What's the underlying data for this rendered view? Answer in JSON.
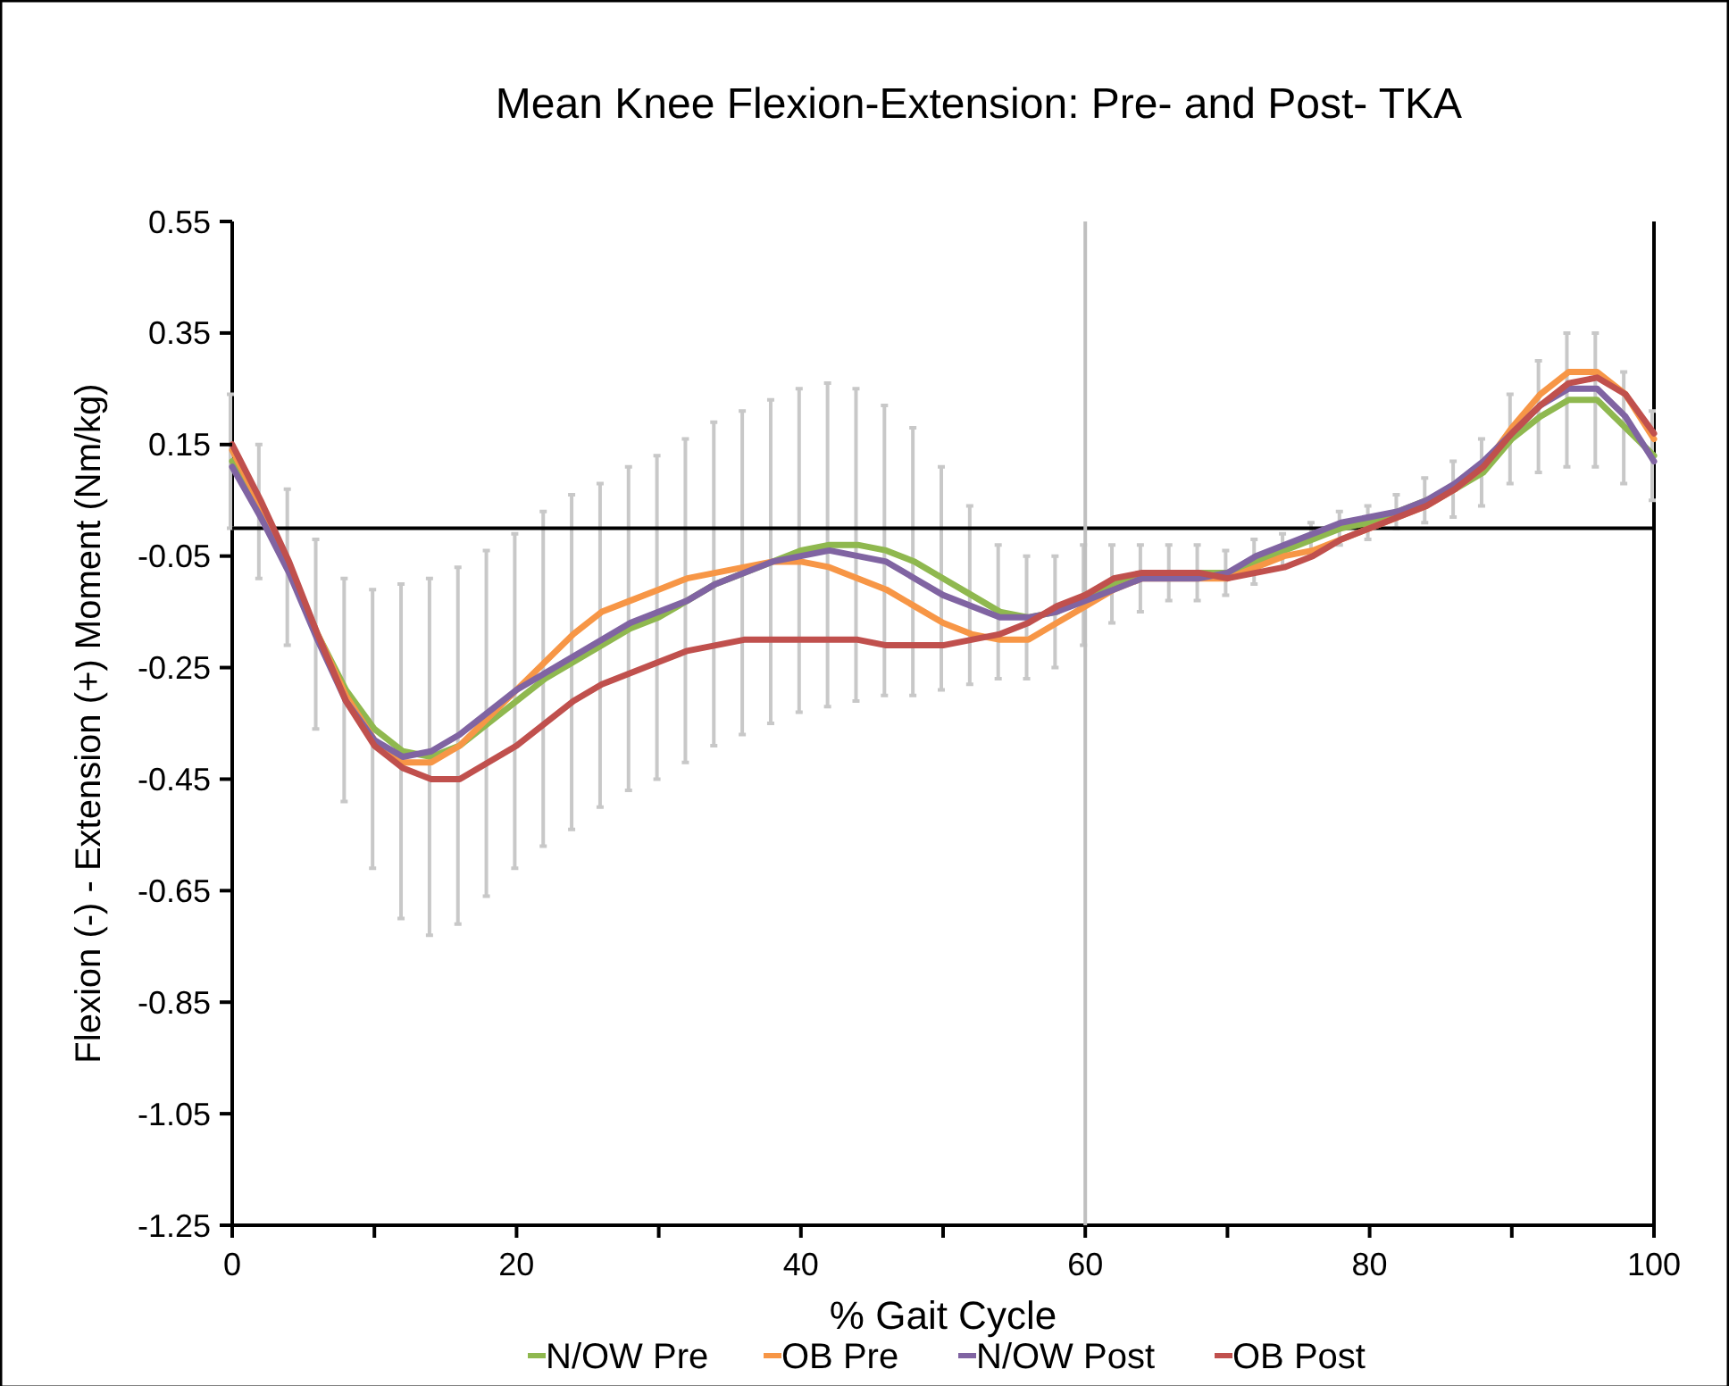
{
  "chart_data": {
    "type": "line",
    "title": "Mean Knee Flexion-Extension: Pre- and Post- TKA",
    "xlabel": "% Gait Cycle",
    "ylabel": "Flexion (-) - Extension (+) Moment (Nm/kg)",
    "x": [
      0,
      2,
      4,
      6,
      8,
      10,
      12,
      14,
      16,
      18,
      20,
      22,
      24,
      26,
      28,
      30,
      32,
      34,
      36,
      38,
      40,
      42,
      44,
      46,
      48,
      50,
      52,
      54,
      56,
      58,
      60,
      62,
      64,
      66,
      68,
      70,
      72,
      74,
      76,
      78,
      80,
      82,
      84,
      86,
      88,
      90,
      92,
      94,
      96,
      98,
      100
    ],
    "series": [
      {
        "name": "N/OW Pre",
        "color": "#8fb84f",
        "values": [
          0.12,
          0.03,
          -0.07,
          -0.19,
          -0.29,
          -0.36,
          -0.4,
          -0.41,
          -0.39,
          -0.35,
          -0.31,
          -0.27,
          -0.24,
          -0.21,
          -0.18,
          -0.16,
          -0.13,
          -0.1,
          -0.08,
          -0.06,
          -0.04,
          -0.03,
          -0.03,
          -0.04,
          -0.06,
          -0.09,
          -0.12,
          -0.15,
          -0.16,
          -0.15,
          -0.12,
          -0.1,
          -0.09,
          -0.08,
          -0.08,
          -0.08,
          -0.06,
          -0.04,
          -0.02,
          0.0,
          0.01,
          0.03,
          0.05,
          0.07,
          0.1,
          0.16,
          0.2,
          0.23,
          0.23,
          0.18,
          0.13
        ],
        "errors": [
          0.12,
          0.12,
          0.14,
          0.17,
          0.2,
          0.25,
          0.3,
          0.32,
          0.32,
          0.31,
          0.3,
          0.3,
          0.3,
          0.29,
          0.29,
          0.29,
          0.29,
          0.29,
          0.29,
          0.29,
          0.29,
          0.29,
          0.28,
          0.26,
          0.24,
          0.2,
          0.16,
          0.12,
          0.11,
          0.1,
          0.09,
          0.07,
          0.06,
          0.05,
          0.05,
          0.04,
          0.04,
          0.03,
          0.03,
          0.03,
          0.03,
          0.03,
          0.04,
          0.05,
          0.06,
          0.08,
          0.1,
          0.12,
          0.12,
          0.1,
          0.08
        ]
      },
      {
        "name": "OB Pre",
        "color": "#f79646",
        "values": [
          0.14,
          0.04,
          -0.07,
          -0.19,
          -0.3,
          -0.38,
          -0.42,
          -0.42,
          -0.39,
          -0.34,
          -0.29,
          -0.24,
          -0.19,
          -0.15,
          -0.13,
          -0.11,
          -0.09,
          -0.08,
          -0.07,
          -0.06,
          -0.06,
          -0.07,
          -0.09,
          -0.11,
          -0.14,
          -0.17,
          -0.19,
          -0.2,
          -0.2,
          -0.17,
          -0.14,
          -0.11,
          -0.09,
          -0.09,
          -0.09,
          -0.09,
          -0.07,
          -0.05,
          -0.04,
          -0.02,
          0.0,
          0.02,
          0.04,
          0.07,
          0.11,
          0.18,
          0.24,
          0.28,
          0.28,
          0.24,
          0.16
        ]
      },
      {
        "name": "N/OW Post",
        "color": "#8064a2",
        "values": [
          0.11,
          0.02,
          -0.08,
          -0.2,
          -0.31,
          -0.38,
          -0.41,
          -0.4,
          -0.37,
          -0.33,
          -0.29,
          -0.26,
          -0.23,
          -0.2,
          -0.17,
          -0.15,
          -0.13,
          -0.1,
          -0.08,
          -0.06,
          -0.05,
          -0.04,
          -0.05,
          -0.06,
          -0.09,
          -0.12,
          -0.14,
          -0.16,
          -0.16,
          -0.15,
          -0.13,
          -0.11,
          -0.09,
          -0.09,
          -0.09,
          -0.08,
          -0.05,
          -0.03,
          -0.01,
          0.01,
          0.02,
          0.03,
          0.05,
          0.08,
          0.12,
          0.17,
          0.22,
          0.25,
          0.25,
          0.2,
          0.12
        ]
      },
      {
        "name": "OB Post",
        "color": "#c0504d",
        "values": [
          0.15,
          0.05,
          -0.06,
          -0.19,
          -0.31,
          -0.39,
          -0.43,
          -0.45,
          -0.45,
          -0.42,
          -0.39,
          -0.35,
          -0.31,
          -0.28,
          -0.26,
          -0.24,
          -0.22,
          -0.21,
          -0.2,
          -0.2,
          -0.2,
          -0.2,
          -0.2,
          -0.21,
          -0.21,
          -0.21,
          -0.2,
          -0.19,
          -0.17,
          -0.14,
          -0.12,
          -0.09,
          -0.08,
          -0.08,
          -0.08,
          -0.09,
          -0.08,
          -0.07,
          -0.05,
          -0.02,
          0.0,
          0.02,
          0.04,
          0.07,
          0.11,
          0.17,
          0.22,
          0.26,
          0.27,
          0.24,
          0.17
        ]
      }
    ],
    "xlim": [
      0,
      100
    ],
    "xticks": [
      0,
      {
        "value": 10,
        "label": null
      },
      20,
      {
        "value": 30,
        "label": null
      },
      40,
      {
        "value": 50,
        "label": null
      },
      60,
      {
        "value": 70,
        "label": null
      },
      80,
      {
        "value": 90,
        "label": null
      },
      100
    ],
    "ylim": [
      -1.25,
      0.55
    ],
    "yticks": [
      -1.25,
      -1.05,
      -0.85,
      -0.65,
      -0.45,
      -0.25,
      -0.05,
      0.15,
      0.35,
      0.55
    ],
    "ref_lines": [
      {
        "axis": "y",
        "value": 0,
        "color": "#000000"
      },
      {
        "axis": "x",
        "value": 60,
        "color": "#bfbfbf"
      }
    ],
    "legend": "bottom",
    "marker": "none",
    "line_style": "solid"
  }
}
